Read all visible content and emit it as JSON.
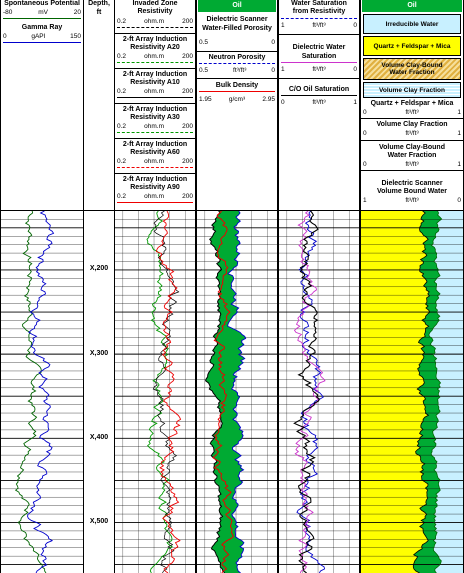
{
  "track1": {
    "sp_title": "Spontaneous Potential",
    "sp_left": "-80",
    "sp_unit": "mV",
    "sp_right": "20",
    "gr_title": "Gamma Ray",
    "gr_left": "0",
    "gr_unit": "gAPI",
    "gr_right": "150"
  },
  "depth_track": {
    "title": "Depth,",
    "unit": "ft"
  },
  "track2": {
    "invaded_title": "Invaded Zone",
    "invaded_sub": "Resistivity",
    "curves": [
      {
        "title": "2-ft Array Induction",
        "sub": "Resistivity A20"
      },
      {
        "title": "2-ft Array Induction",
        "sub": "Resistivity A10"
      },
      {
        "title": "2-ft Array Induction",
        "sub": "Resistivity A30"
      },
      {
        "title": "2-ft Array Induction",
        "sub": "Resistivity A60"
      },
      {
        "title": "2-ft Array Induction",
        "sub": "Resistivity A90"
      }
    ],
    "scale_left": "0.2",
    "scale_unit": "ohm.m",
    "scale_right": "200"
  },
  "track3": {
    "title": "Oil",
    "curve1_title": "Dielectric Scanner",
    "curve1_sub": "Water-Filled Porosity",
    "curve1_left": "0.5",
    "curve1_right": "0",
    "curve2_title": "Neutron Porosity",
    "curve2_left": "0.5",
    "curve2_unit": "ft³/ft³",
    "curve2_right": "0",
    "curve3_title": "Bulk Density",
    "curve3_left": "1.95",
    "curve3_unit": "g/cm³",
    "curve3_right": "2.95"
  },
  "track4": {
    "title1": "Water Saturation",
    "title2": "from Resistivity",
    "s1_left": "1",
    "s1_unit": "ft³/ft³",
    "s1_right": "0",
    "title3": "Dielectric Water",
    "title4": "Saturation",
    "s2_left": "1",
    "s2_unit": "ft³/ft³",
    "s2_right": "0",
    "title5": "C/O Oil Saturation",
    "s3_left": "0",
    "s3_unit": "ft³/ft³",
    "s3_right": "1"
  },
  "track5": {
    "title": "Oil",
    "legend1": "Irreducible Water",
    "legend2": "Quartz + Feldspar + Mica",
    "legend3a": "Volume Clay-Bound",
    "legend3b": "Water Fraction",
    "legend4": "Volume Clay Fraction",
    "c1_title": "Quartz + Feldspar + Mica",
    "c1_left": "0",
    "c1_unit": "ft³/ft³",
    "c1_right": "1",
    "c2_title": "Volume Clay Fraction",
    "c2_left": "0",
    "c2_unit": "ft³/ft³",
    "c2_right": "1",
    "c3_title": "Volume Clay-Bound",
    "c3_sub": "Water Fraction",
    "c3_left": "0",
    "c3_unit": "ft³/ft³",
    "c3_right": "1",
    "c4_title": "Dielectric Scanner",
    "c4_sub": "Volume Bound Water",
    "c4_left": "1",
    "c4_unit": "ft³/ft³",
    "c4_right": "0"
  },
  "chart_data": {
    "type": "line",
    "depth_labels": [
      "X,200",
      "X,300",
      "X,400",
      "X,500"
    ],
    "depth_values": [
      200,
      300,
      400,
      500
    ],
    "depth_range": [
      130,
      560
    ],
    "colors": {
      "sp": "#006400",
      "gr": "#0000cc",
      "res_green": "#009900",
      "res_red": "#ee0000",
      "oil_fill": "#00aa33",
      "irreducible": "#ffff00",
      "clay": "#c8f0ff",
      "black": "#000000",
      "magenta": "#cc33cc"
    }
  }
}
